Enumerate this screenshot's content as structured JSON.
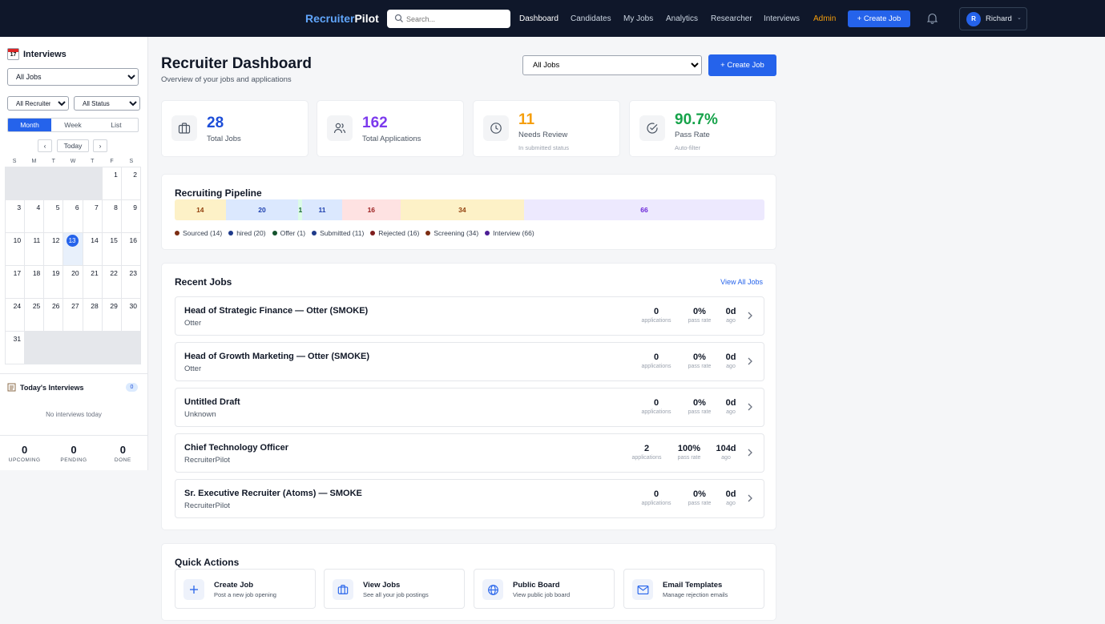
{
  "topbar": {
    "brand_part1": "Recruiter",
    "brand_part2": "Pilot",
    "search_placeholder": "Search...",
    "nav": [
      "Dashboard",
      "Candidates",
      "My Jobs",
      "Analytics",
      "Researcher",
      "Interviews",
      "Admin"
    ],
    "create_job": "+ Create Job",
    "user_initial": "R",
    "user_name": "Richard"
  },
  "sidebar": {
    "title": "Interviews",
    "title_icon_day": "17",
    "job_filter": "All Jobs",
    "recruiter_filter": "All Recruiters",
    "status_filter": "All Status",
    "views": [
      "Month",
      "Week",
      "List"
    ],
    "active_view": "Month",
    "prev": "‹",
    "today": "Today",
    "next": "›",
    "weekdays": [
      "S",
      "M",
      "T",
      "W",
      "T",
      "F",
      "S"
    ],
    "days": [
      "",
      "",
      "",
      "",
      "",
      "1",
      "2",
      "3",
      "4",
      "5",
      "6",
      "7",
      "8",
      "9",
      "10",
      "11",
      "12",
      "13",
      "14",
      "15",
      "16",
      "17",
      "18",
      "19",
      "20",
      "21",
      "22",
      "23",
      "24",
      "25",
      "26",
      "27",
      "28",
      "29",
      "30",
      "31",
      "",
      "",
      "",
      "",
      "",
      ""
    ],
    "today_day": "13",
    "todays_title": "Today's Interviews",
    "todays_count": "0",
    "todays_empty": "No interviews today",
    "stats": [
      {
        "value": "0",
        "label": "UPCOMING"
      },
      {
        "value": "0",
        "label": "PENDING"
      },
      {
        "value": "0",
        "label": "DONE"
      }
    ]
  },
  "main": {
    "title": "Recruiter Dashboard",
    "subtitle": "Overview of your jobs and applications",
    "job_filter": "All Jobs",
    "create_job": "+ Create Job",
    "stats": [
      {
        "value": "28",
        "label": "Total Jobs",
        "sub": "",
        "color": "#1d4ed8",
        "icon": "briefcase-icon"
      },
      {
        "value": "162",
        "label": "Total Applications",
        "sub": "",
        "color": "#7c3aed",
        "icon": "users-icon"
      },
      {
        "value": "11",
        "label": "Needs Review",
        "sub": "In submitted status",
        "color": "#f59e0b",
        "icon": "clock-icon"
      },
      {
        "value": "90.7%",
        "label": "Pass Rate",
        "sub": "Auto-filter",
        "color": "#16a34a",
        "icon": "check-circle-icon"
      }
    ],
    "pipeline": {
      "title": "Recruiting Pipeline",
      "segments": [
        {
          "name": "Sourced",
          "count": 14,
          "bg": "#fdf1c7",
          "fg": "#92400e",
          "dot": "#7c2d12"
        },
        {
          "name": "hired",
          "count": 20,
          "bg": "#dbe8fe",
          "fg": "#1e40af",
          "dot": "#1e3a8a"
        },
        {
          "name": "Offer",
          "count": 1,
          "bg": "#dcfce7",
          "fg": "#166534",
          "dot": "#14532d"
        },
        {
          "name": "Submitted",
          "count": 11,
          "bg": "#dbe8fe",
          "fg": "#1e40af",
          "dot": "#1e3a8a"
        },
        {
          "name": "Rejected",
          "count": 16,
          "bg": "#fee2e2",
          "fg": "#991b1b",
          "dot": "#7f1d1d"
        },
        {
          "name": "Screening",
          "count": 34,
          "bg": "#fdf1c7",
          "fg": "#92400e",
          "dot": "#7c2d12"
        },
        {
          "name": "Interview",
          "count": 66,
          "bg": "#ede9fe",
          "fg": "#6d28d9",
          "dot": "#4c1d95"
        }
      ]
    },
    "recent": {
      "title": "Recent Jobs",
      "view_all": "View All Jobs",
      "label_apps": "applications",
      "label_pass": "pass rate",
      "label_ago": "ago",
      "jobs": [
        {
          "title": "Head of Strategic Finance — Otter (SMOKE)",
          "company": "Otter",
          "apps": "0",
          "pass": "0%",
          "ago": "0d"
        },
        {
          "title": "Head of Growth Marketing — Otter (SMOKE)",
          "company": "Otter",
          "apps": "0",
          "pass": "0%",
          "ago": "0d"
        },
        {
          "title": "Untitled Draft",
          "company": "Unknown",
          "apps": "0",
          "pass": "0%",
          "ago": "0d"
        },
        {
          "title": "Chief Technology Officer",
          "company": "RecruiterPilot",
          "apps": "2",
          "pass": "100%",
          "ago": "104d"
        },
        {
          "title": "Sr. Executive Recruiter (Atoms) — SMOKE",
          "company": "RecruiterPilot",
          "apps": "0",
          "pass": "0%",
          "ago": "0d"
        }
      ]
    },
    "quick": {
      "title": "Quick Actions",
      "items": [
        {
          "title": "Create Job",
          "sub": "Post a new job opening",
          "icon": "plus-icon"
        },
        {
          "title": "View Jobs",
          "sub": "See all your job postings",
          "icon": "briefcase-icon"
        },
        {
          "title": "Public Board",
          "sub": "View public job board",
          "icon": "globe-icon"
        },
        {
          "title": "Email Templates",
          "sub": "Manage rejection emails",
          "icon": "mail-icon"
        }
      ]
    }
  }
}
